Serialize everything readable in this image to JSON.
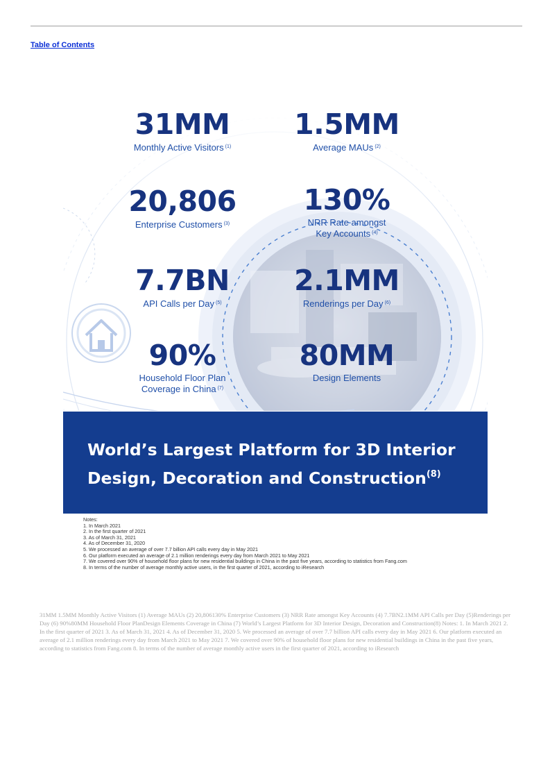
{
  "header": {
    "toc_link": "Table of Contents"
  },
  "stats": [
    {
      "value": "31MM",
      "label": "Monthly Active Visitors",
      "ref": "(1)"
    },
    {
      "value": "1.5MM",
      "label": "Average MAUs",
      "ref": "(2)"
    },
    {
      "value": "20,806",
      "label": "Enterprise Customers",
      "ref": "(3)"
    },
    {
      "value": "130%",
      "label_line1": "NRR Rate amongst",
      "label_line2": "Key Accounts",
      "ref": "(4)"
    },
    {
      "value": "7.7BN",
      "label": "API Calls per Day",
      "ref": "(5)"
    },
    {
      "value": "2.1MM",
      "label": "Renderings per Day",
      "ref": "(6)"
    },
    {
      "value": "90%",
      "label_line1": "Household Floor Plan",
      "label_line2": "Coverage in China",
      "ref": "(7)"
    },
    {
      "value": "80MM",
      "label": "Design Elements"
    }
  ],
  "banner": {
    "line1": "World’s Largest Platform for 3D Interior",
    "line2": "Design, Decoration and Construction",
    "ref": "(8)"
  },
  "notes": {
    "heading": "Notes:",
    "items": [
      "1. In March 2021",
      "2. In the first quarter of 2021",
      "3. As of March 31, 2021",
      "4. As of December 31, 2020",
      "5. We processed an average of over 7.7 billion API calls every day in May 2021",
      "6. Our platform executed an average of 2.1 million renderings every day from March 2021 to May 2021",
      "7. We covered over 90% of household floor plans for new residential buildings in China in the past five years, according to statistics from Fang.com",
      "8. In terms of the number of average monthly active users, in the first quarter of 2021, according to iResearch"
    ]
  },
  "text_layer": "31MM 1.5MM Monthly Active Visitors (1) Average MAUs (2) 20,806130% Enterprise Customers (3) NRR Rate amongst Key Accounts (4) 7.7BN2.1MM API Calls per Day (5)Renderings per Day (6) 90%80MM Household Floor PlanDesign Elements Coverage in China (7) World’s Largest Platform for 3D Interior Design, Decoration and Construction(8) Notes: 1. In March 2021 2. In the first quarter of 2021 3. As of March 31, 2021 4. As of December 31, 2020 5. We processed an average of over 7.7 billion API calls every day in May 2021 6. Our platform executed an average of 2.1 million renderings every day from March 2021 to May 2021 7. We covered over 90% of household floor plans for new residential buildings in China in the past five years, according to statistics from Fang.com 8. In terms of the number of average monthly active users in the first quarter of 2021, according to iResearch",
  "colors": {
    "stat_value": "#17337f",
    "stat_label": "#1f4fa8",
    "banner_bg": "#143d8f",
    "link": "#0b2fd6"
  },
  "icons": [
    "house-icon"
  ]
}
